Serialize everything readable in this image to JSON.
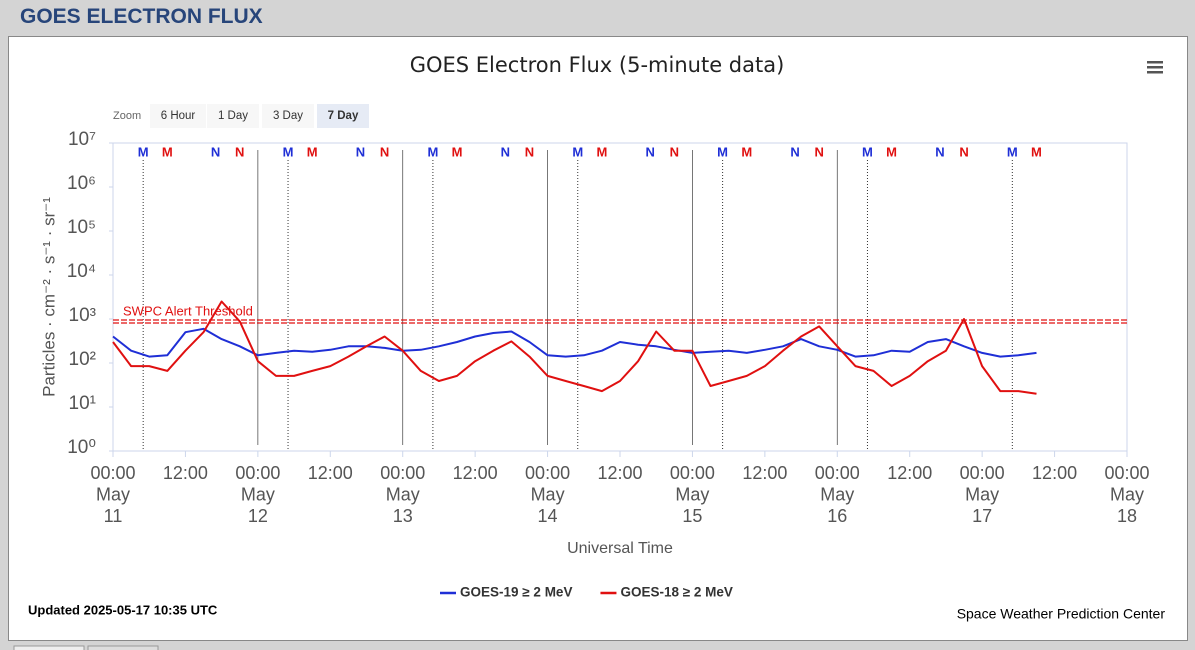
{
  "header": "GOES ELECTRON FLUX",
  "zoom": {
    "label": "Zoom",
    "buttons": [
      "6 Hour",
      "1 Day",
      "3 Day",
      "7 Day"
    ],
    "selected": 3
  },
  "updated": "Updated 2025-05-17 10:35 UTC",
  "credit": "Space Weather Prediction Center",
  "chart_data": {
    "type": "line",
    "title": "GOES Electron Flux (5-minute data)",
    "x_label": "Universal Time",
    "y_label": "Particles · cm⁻² · s⁻¹ · sr⁻¹",
    "log_y": true,
    "ylim": [
      1,
      10000000
    ],
    "yticks": [
      {
        "value": 1,
        "label": "10⁰"
      },
      {
        "value": 10,
        "label": "10¹"
      },
      {
        "value": 100,
        "label": "10²"
      },
      {
        "value": 1000,
        "label": "10³"
      },
      {
        "value": 10000,
        "label": "10⁴"
      },
      {
        "value": 100000,
        "label": "10⁵"
      },
      {
        "value": 1000000,
        "label": "10⁶"
      },
      {
        "value": 10000000,
        "label": "10⁷"
      }
    ],
    "xlim": [
      "May 11 00:00",
      "May 18 00:00"
    ],
    "xticks": [
      {
        "value": "May 11 00:00",
        "label": [
          "00:00",
          "May",
          "11"
        ]
      },
      {
        "value": "May 11 12:00",
        "label": "12:00"
      },
      {
        "value": "May 12 00:00",
        "label": [
          "00:00",
          "May",
          "12"
        ]
      },
      {
        "value": "May 12 12:00",
        "label": "12:00"
      },
      {
        "value": "May 13 00:00",
        "label": [
          "00:00",
          "May",
          "13"
        ]
      },
      {
        "value": "May 13 12:00",
        "label": "12:00"
      },
      {
        "value": "May 14 00:00",
        "label": [
          "00:00",
          "May",
          "14"
        ]
      },
      {
        "value": "May 14 12:00",
        "label": "12:00"
      },
      {
        "value": "May 15 00:00",
        "label": [
          "00:00",
          "May",
          "15"
        ]
      },
      {
        "value": "May 15 12:00",
        "label": "12:00"
      },
      {
        "value": "May 16 00:00",
        "label": [
          "00:00",
          "May",
          "16"
        ]
      },
      {
        "value": "May 16 12:00",
        "label": "12:00"
      },
      {
        "value": "May 17 00:00",
        "label": [
          "00:00",
          "May",
          "17"
        ]
      },
      {
        "value": "May 17 12:00",
        "label": "12:00"
      },
      {
        "value": "May 18 00:00",
        "label": [
          "00:00",
          "May",
          "18"
        ]
      }
    ],
    "x": [
      "May 11 00:00",
      "May 11 03:00",
      "May 11 06:00",
      "May 11 09:00",
      "May 11 12:00",
      "May 11 15:00",
      "May 11 18:00",
      "May 11 21:00",
      "May 12 00:00",
      "May 12 03:00",
      "May 12 06:00",
      "May 12 09:00",
      "May 12 12:00",
      "May 12 15:00",
      "May 12 18:00",
      "May 12 21:00",
      "May 13 00:00",
      "May 13 03:00",
      "May 13 06:00",
      "May 13 09:00",
      "May 13 12:00",
      "May 13 15:00",
      "May 13 18:00",
      "May 13 21:00",
      "May 14 00:00",
      "May 14 03:00",
      "May 14 06:00",
      "May 14 09:00",
      "May 14 12:00",
      "May 14 15:00",
      "May 14 18:00",
      "May 14 21:00",
      "May 15 00:00",
      "May 15 03:00",
      "May 15 06:00",
      "May 15 09:00",
      "May 15 12:00",
      "May 15 15:00",
      "May 15 18:00",
      "May 15 21:00",
      "May 16 00:00",
      "May 16 03:00",
      "May 16 06:00",
      "May 16 09:00",
      "May 16 12:00",
      "May 16 15:00",
      "May 16 18:00",
      "May 16 21:00",
      "May 17 00:00",
      "May 17 03:00",
      "May 17 06:00",
      "May 17 09:00"
    ],
    "series": [
      {
        "name": "GOES-19 ≥ 2 MeV",
        "color": "#1f2fd6",
        "values": [
          400,
          190,
          140,
          150,
          500,
          600,
          350,
          240,
          150,
          170,
          190,
          180,
          200,
          240,
          240,
          220,
          190,
          200,
          240,
          300,
          400,
          480,
          520,
          300,
          150,
          140,
          150,
          190,
          300,
          260,
          240,
          200,
          170,
          180,
          190,
          170,
          200,
          240,
          350,
          240,
          200,
          140,
          150,
          190,
          180,
          300,
          350,
          240,
          170,
          140,
          150,
          170
        ]
      },
      {
        "name": "GOES-18 ≥ 2 MeV",
        "color": "#e01010",
        "values": [
          300,
          85,
          85,
          66,
          190,
          500,
          2500,
          880,
          110,
          51,
          51,
          66,
          85,
          140,
          240,
          400,
          190,
          66,
          39,
          51,
          110,
          190,
          310,
          140,
          51,
          39,
          30,
          23,
          39,
          110,
          520,
          190,
          190,
          30,
          39,
          51,
          85,
          190,
          400,
          680,
          240,
          85,
          66,
          30,
          51,
          110,
          190,
          1000,
          85,
          23,
          23,
          20
        ]
      }
    ],
    "threshold": {
      "value": 1000,
      "label": "SWPC Alert Threshold",
      "color": "#e01010"
    },
    "vertical_lines": [
      "May 12 00:00",
      "May 13 00:00",
      "May 14 00:00",
      "May 15 00:00",
      "May 16 00:00"
    ],
    "local_time_markers": [
      {
        "label": "M",
        "color": "#1f2fd6",
        "x": "May 11 05:00",
        "dotted_line": true
      },
      {
        "label": "M",
        "color": "#e01010",
        "x": "May 11 09:00"
      },
      {
        "label": "N",
        "color": "#1f2fd6",
        "x": "May 11 17:00"
      },
      {
        "label": "N",
        "color": "#e01010",
        "x": "May 11 21:00"
      },
      {
        "label": "M",
        "color": "#1f2fd6",
        "x": "May 12 05:00",
        "dotted_line": true
      },
      {
        "label": "M",
        "color": "#e01010",
        "x": "May 12 09:00"
      },
      {
        "label": "N",
        "color": "#1f2fd6",
        "x": "May 12 17:00"
      },
      {
        "label": "N",
        "color": "#e01010",
        "x": "May 12 21:00"
      },
      {
        "label": "M",
        "color": "#1f2fd6",
        "x": "May 13 05:00",
        "dotted_line": true
      },
      {
        "label": "M",
        "color": "#e01010",
        "x": "May 13 09:00"
      },
      {
        "label": "N",
        "color": "#1f2fd6",
        "x": "May 13 17:00"
      },
      {
        "label": "N",
        "color": "#e01010",
        "x": "May 13 21:00"
      },
      {
        "label": "M",
        "color": "#1f2fd6",
        "x": "May 14 05:00",
        "dotted_line": true
      },
      {
        "label": "M",
        "color": "#e01010",
        "x": "May 14 09:00"
      },
      {
        "label": "N",
        "color": "#1f2fd6",
        "x": "May 14 17:00"
      },
      {
        "label": "N",
        "color": "#e01010",
        "x": "May 14 21:00"
      },
      {
        "label": "M",
        "color": "#1f2fd6",
        "x": "May 15 05:00",
        "dotted_line": true
      },
      {
        "label": "M",
        "color": "#e01010",
        "x": "May 15 09:00"
      },
      {
        "label": "N",
        "color": "#1f2fd6",
        "x": "May 15 17:00"
      },
      {
        "label": "N",
        "color": "#e01010",
        "x": "May 15 21:00"
      },
      {
        "label": "M",
        "color": "#1f2fd6",
        "x": "May 16 05:00",
        "dotted_line": true
      },
      {
        "label": "M",
        "color": "#e01010",
        "x": "May 16 09:00"
      },
      {
        "label": "N",
        "color": "#1f2fd6",
        "x": "May 16 17:00"
      },
      {
        "label": "N",
        "color": "#e01010",
        "x": "May 16 21:00"
      },
      {
        "label": "M",
        "color": "#1f2fd6",
        "x": "May 17 05:00",
        "dotted_line": true
      },
      {
        "label": "M",
        "color": "#e01010",
        "x": "May 17 09:00"
      }
    ]
  }
}
